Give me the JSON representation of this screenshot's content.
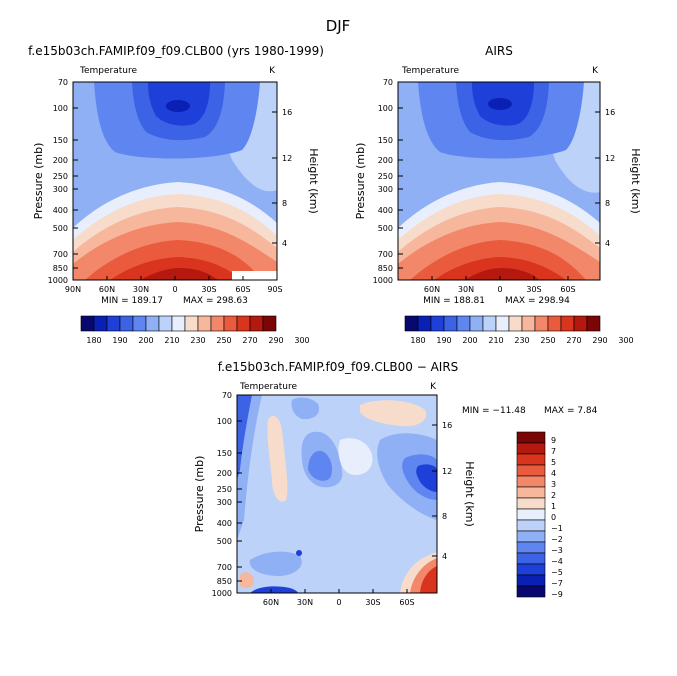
{
  "figure": {
    "title": "DJF",
    "variable_label": "Temperature",
    "unit_label": "K",
    "y_axis_label": "Pressure (mb)",
    "y2_axis_label": "Height (km)"
  },
  "chart_data": [
    {
      "type": "heatmap",
      "title": "f.e15b03ch.FAMIP.f09_f09.CLB00 (yrs 1980-1999)",
      "variable": "Temperature",
      "unit": "K",
      "ylabel": "Pressure (mb)",
      "y2label": "Height (km)",
      "x_ticks": [
        "90N",
        "60N",
        "30N",
        "0",
        "30S",
        "60S",
        "90S"
      ],
      "y_ticks": [
        "70",
        "100",
        "150",
        "200",
        "250",
        "300",
        "400",
        "500",
        "700",
        "850",
        "1000"
      ],
      "y2_ticks": [
        "16",
        "12",
        "8",
        "4"
      ],
      "min_label": "MIN = 189.17",
      "max_label": "MAX = 298.63",
      "min": 189.17,
      "max": 298.63,
      "colorbar_labels": [
        "180",
        "190",
        "200",
        "210",
        "230",
        "250",
        "270",
        "290",
        "300"
      ]
    },
    {
      "type": "heatmap",
      "title": "AIRS",
      "variable": "Temperature",
      "unit": "K",
      "ylabel": "Pressure (mb)",
      "y2label": "Height (km)",
      "x_ticks": [
        "60N",
        "30N",
        "0",
        "30S",
        "60S"
      ],
      "y_ticks": [
        "70",
        "100",
        "150",
        "200",
        "250",
        "300",
        "400",
        "500",
        "700",
        "850",
        "1000"
      ],
      "y2_ticks": [
        "16",
        "12",
        "8",
        "4"
      ],
      "min_label": "MIN = 188.81",
      "max_label": "MAX = 298.94",
      "min": 188.81,
      "max": 298.94,
      "colorbar_labels": [
        "180",
        "190",
        "200",
        "210",
        "230",
        "250",
        "270",
        "290",
        "300"
      ]
    },
    {
      "type": "heatmap",
      "title": "f.e15b03ch.FAMIP.f09_f09.CLB00 − AIRS",
      "variable": "Temperature",
      "unit": "K",
      "ylabel": "Pressure (mb)",
      "y2label": "Height (km)",
      "x_ticks": [
        "60N",
        "30N",
        "0",
        "30S",
        "60S"
      ],
      "y_ticks": [
        "70",
        "100",
        "150",
        "200",
        "250",
        "300",
        "400",
        "500",
        "700",
        "850",
        "1000"
      ],
      "y2_ticks": [
        "16",
        "12",
        "8",
        "4"
      ],
      "min_label": "MIN = −11.48",
      "max_label": "MAX =   7.84",
      "min": -11.48,
      "max": 7.84,
      "colorbar_labels": [
        "9",
        "7",
        "5",
        "4",
        "3",
        "2",
        "1",
        "0",
        "−1",
        "−2",
        "−3",
        "−4",
        "−5",
        "−7",
        "−9"
      ]
    }
  ],
  "colors": {
    "temp_levels": [
      "#08086e",
      "#0a1fb4",
      "#1e3fd8",
      "#3c62e6",
      "#5f86f0",
      "#8fb0f5",
      "#bcd2f8",
      "#e8eefb",
      "#f7dccb",
      "#f6b79c",
      "#f2876a",
      "#ea5a3c",
      "#d8341e",
      "#b5180e",
      "#7a0606"
    ],
    "diff_levels": [
      "#7a0606",
      "#b5180e",
      "#d8341e",
      "#ea5a3c",
      "#f2876a",
      "#f6b79c",
      "#f7dccb",
      "#e8eefb",
      "#bcd2f8",
      "#8fb0f5",
      "#5f86f0",
      "#3c62e6",
      "#1e3fd8",
      "#0a1fb4",
      "#08086e"
    ]
  }
}
